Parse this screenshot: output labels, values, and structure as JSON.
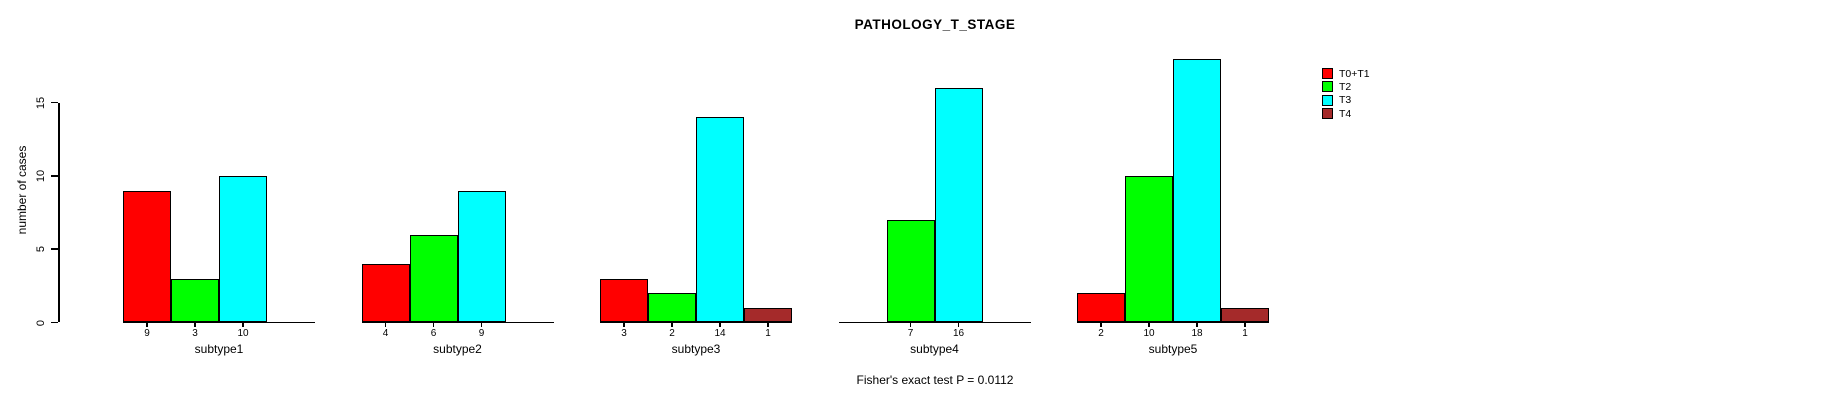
{
  "chart_data": {
    "type": "bar",
    "title": "PATHOLOGY_T_STAGE",
    "ylabel": "number of cases",
    "xlabel": "",
    "annotation": "Fisher's exact test P = 0.0112",
    "yticks": [
      0,
      5,
      10,
      15
    ],
    "ylim": [
      0,
      18
    ],
    "grid": false,
    "legend_position": "top-right",
    "bar_outline_color": "#000000",
    "categories": [
      "subtype1",
      "subtype2",
      "subtype3",
      "subtype4",
      "subtype5"
    ],
    "series": [
      {
        "name": "T0+T1",
        "color": "#FF0000",
        "values": [
          9,
          4,
          3,
          null,
          2
        ]
      },
      {
        "name": "T2",
        "color": "#00FF00",
        "values": [
          3,
          6,
          2,
          7,
          10
        ]
      },
      {
        "name": "T3",
        "color": "#00FFFF",
        "values": [
          10,
          9,
          14,
          16,
          18
        ]
      },
      {
        "name": "T4",
        "color": "#A52A2A",
        "values": [
          null,
          null,
          1,
          null,
          1
        ]
      }
    ]
  }
}
